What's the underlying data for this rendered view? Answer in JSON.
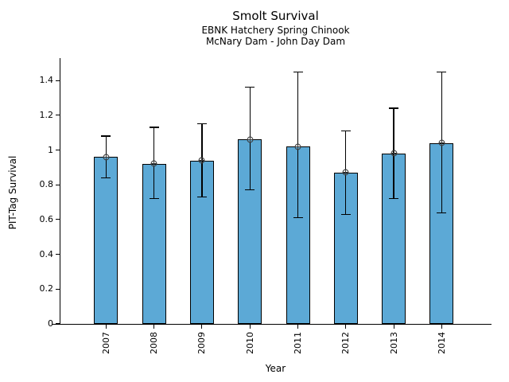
{
  "chart_data": {
    "type": "bar",
    "title": "Smolt Survival",
    "subtitle_line1": "EBNK Hatchery Spring Chinook",
    "subtitle_line2": "McNary Dam - John Day Dam",
    "xlabel": "Year",
    "ylabel": "PIT-Tag Survival",
    "categories": [
      "2007",
      "2008",
      "2009",
      "2010",
      "2011",
      "2012",
      "2013",
      "2014"
    ],
    "values": [
      0.96,
      0.92,
      0.94,
      1.06,
      1.02,
      0.87,
      0.98,
      1.04
    ],
    "error_low": [
      0.84,
      0.72,
      0.73,
      0.77,
      0.61,
      0.63,
      0.72,
      0.64
    ],
    "error_high": [
      1.08,
      1.13,
      1.15,
      1.36,
      1.45,
      1.11,
      1.24,
      1.45
    ],
    "yticks": [
      0,
      0.2,
      0.4,
      0.6,
      0.8,
      1,
      1.2,
      1.4
    ],
    "ytick_labels": [
      "0",
      "0.2",
      "0.4",
      "0.6",
      "0.8",
      "1",
      "1.2",
      "1.4"
    ],
    "ylim": [
      0,
      1.52
    ],
    "grid": false,
    "legend": null,
    "bar_color": "#5CA9D6",
    "bar_edge_color": "#000000",
    "error_color": "#000000",
    "marker": "circle-plus",
    "marker_color": "#3d3d3d"
  }
}
